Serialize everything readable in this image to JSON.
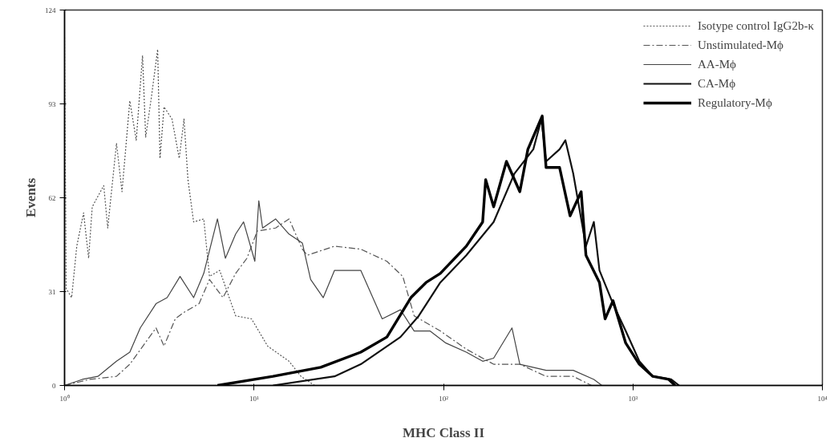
{
  "chart_data": {
    "type": "line",
    "xlabel": "MHC Class II",
    "ylabel": "Events",
    "log": "x",
    "grid": false,
    "legend": "top right",
    "marker": "none",
    "xlim": [
      1,
      10000
    ],
    "xticks": [
      {
        "value": 1,
        "label": "10⁰"
      },
      {
        "value": 10,
        "label": "10¹"
      },
      {
        "value": 100,
        "label": "10²"
      },
      {
        "value": 1000,
        "label": "10³"
      },
      {
        "value": 10000,
        "label": "10⁴"
      }
    ],
    "ylim": [
      0,
      124
    ],
    "yticks": [
      0,
      31,
      62,
      93,
      124
    ],
    "series": [
      {
        "name": "Isotype control IgG2b-κ",
        "color": "#555555",
        "line_style": "dotted",
        "x": [
          1.0,
          1.02,
          1.09,
          1.16,
          1.26,
          1.34,
          1.4,
          1.61,
          1.69,
          1.88,
          2.01,
          2.21,
          2.39,
          2.58,
          2.68,
          2.87,
          3.1,
          3.19,
          3.35,
          3.69,
          4.03,
          4.27,
          4.48,
          4.8,
          5.43,
          5.82,
          6.59,
          8.0,
          9.7,
          11.8,
          15.3,
          17.7,
          20.9
        ],
        "values": [
          115,
          32,
          29,
          46,
          57,
          42,
          59,
          66,
          52,
          80,
          64,
          94,
          81,
          109,
          82,
          95,
          111,
          75,
          92,
          88,
          75,
          88,
          68,
          54,
          55,
          36,
          38,
          23,
          22,
          13,
          8,
          3,
          0
        ]
      },
      {
        "name": "Unstimulated-Mϕ",
        "color": "#555555",
        "line_style": "dashed",
        "x": [
          1,
          1.36,
          1.88,
          2.21,
          3.04,
          3.35,
          3.84,
          4.23,
          5.13,
          5.82,
          6.86,
          8.0,
          9.17,
          10.4,
          13.0,
          15.3,
          18.0,
          19.1,
          26.6,
          36.6,
          50.3,
          61.0,
          70.0,
          96.2,
          132,
          184,
          253,
          348,
          484,
          605
        ],
        "values": [
          0,
          2,
          3,
          7,
          19,
          13,
          22,
          24,
          27,
          35,
          29,
          37,
          42,
          51,
          52,
          55,
          45,
          43,
          46,
          45,
          41,
          36,
          23,
          18,
          12,
          7,
          7,
          3,
          3,
          0
        ]
      },
      {
        "name": "AA-Mϕ",
        "color": "#444444",
        "line_style": "solid",
        "x": [
          1,
          1.24,
          1.5,
          1.88,
          2.21,
          2.51,
          3.04,
          3.48,
          4.07,
          4.8,
          5.43,
          6.41,
          7.06,
          8.0,
          8.81,
          10.1,
          10.6,
          11.1,
          13.0,
          15.3,
          18.0,
          19.9,
          23.2,
          26.6,
          36.6,
          47.5,
          59.3,
          70.0,
          84.8,
          103,
          132,
          161,
          184,
          230,
          253,
          348,
          484,
          622,
          686
        ],
        "values": [
          0,
          2,
          3,
          8,
          11,
          19,
          27,
          29,
          36,
          29,
          37,
          55,
          42,
          50,
          54,
          41,
          61,
          52,
          55,
          50,
          47,
          35,
          29,
          38,
          38,
          22,
          25,
          18,
          18,
          14,
          11,
          8,
          9,
          19,
          7,
          5,
          5,
          2,
          0
        ]
      },
      {
        "name": "CA-Mϕ",
        "color": "#111111",
        "line_style": "solid",
        "x": [
          12.6,
          26.6,
          36.6,
          59.3,
          74.1,
          96.2,
          132,
          184,
          237,
          298,
          329,
          348,
          410,
          440,
          484,
          513,
          565,
          622,
          666,
          785,
          916,
          1081,
          1274,
          1592,
          1753
        ],
        "values": [
          0,
          3,
          7,
          16,
          23,
          34,
          43,
          54,
          70,
          78,
          88,
          74,
          78,
          81,
          70,
          61,
          46,
          54,
          38,
          27,
          18,
          8,
          3,
          2,
          0
        ]
      },
      {
        "name": "Regulatory-Mϕ",
        "color": "#000000",
        "line_style": "solid",
        "x": [
          6.41,
          12.6,
          22.5,
          36.6,
          50.3,
          67.3,
          80.9,
          96.2,
          132,
          161,
          167,
          184,
          215,
          253,
          279,
          332,
          348,
          410,
          466,
          533,
          565,
          666,
          713,
          785,
          916,
          1081,
          1274,
          1545,
          1670
        ],
        "values": [
          0,
          3,
          6,
          11,
          16,
          29,
          34,
          37,
          46,
          54,
          68,
          59,
          74,
          64,
          78,
          89,
          72,
          72,
          56,
          64,
          43,
          34,
          22,
          28,
          14,
          7,
          3,
          2,
          0
        ]
      }
    ]
  }
}
